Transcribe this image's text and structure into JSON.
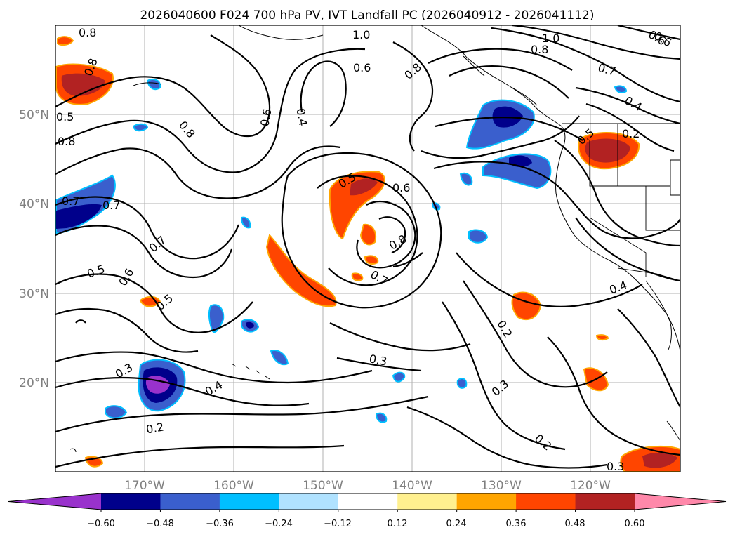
{
  "title": "2026040600 F024 700 hPa PV, IVT Landfall PC (2026040912 - 2026041112)",
  "map": {
    "lat_labels": [
      "50°N",
      "40°N",
      "30°N",
      "20°N"
    ],
    "lon_labels": [
      "170°W",
      "160°W",
      "150°W",
      "140°W",
      "130°W",
      "120°W"
    ],
    "contour_labels": [
      "0.8",
      "0.8",
      "0.8",
      "0.8",
      "0.7",
      "0.7",
      "1.0",
      "0.6",
      "0.8",
      "1.0",
      "0.8",
      "0.6",
      "0.7",
      "0.4",
      "0.6",
      "0.4",
      "0.2",
      "0.5",
      "0.5",
      "0.6",
      "0.8",
      "0.7",
      "0.7",
      "0.5",
      "0.6",
      "0.5",
      "0.4",
      "0.2",
      "0.3",
      "0.4",
      "0.3",
      "0.3",
      "0.2",
      "0.2",
      "0.3",
      "0.5",
      "0.6"
    ]
  },
  "colorbar": {
    "ticks": [
      "−0.60",
      "−0.48",
      "−0.36",
      "−0.24",
      "−0.12",
      "0.12",
      "0.24",
      "0.36",
      "0.48",
      "0.60"
    ],
    "colors": [
      "#9932cc",
      "#00008b",
      "#3a5fcd",
      "#00bfff",
      "#b0e2ff",
      "#ffffff",
      "#fff08f",
      "#ffa500",
      "#ff4500",
      "#b22222",
      "#ff88aa"
    ]
  }
}
